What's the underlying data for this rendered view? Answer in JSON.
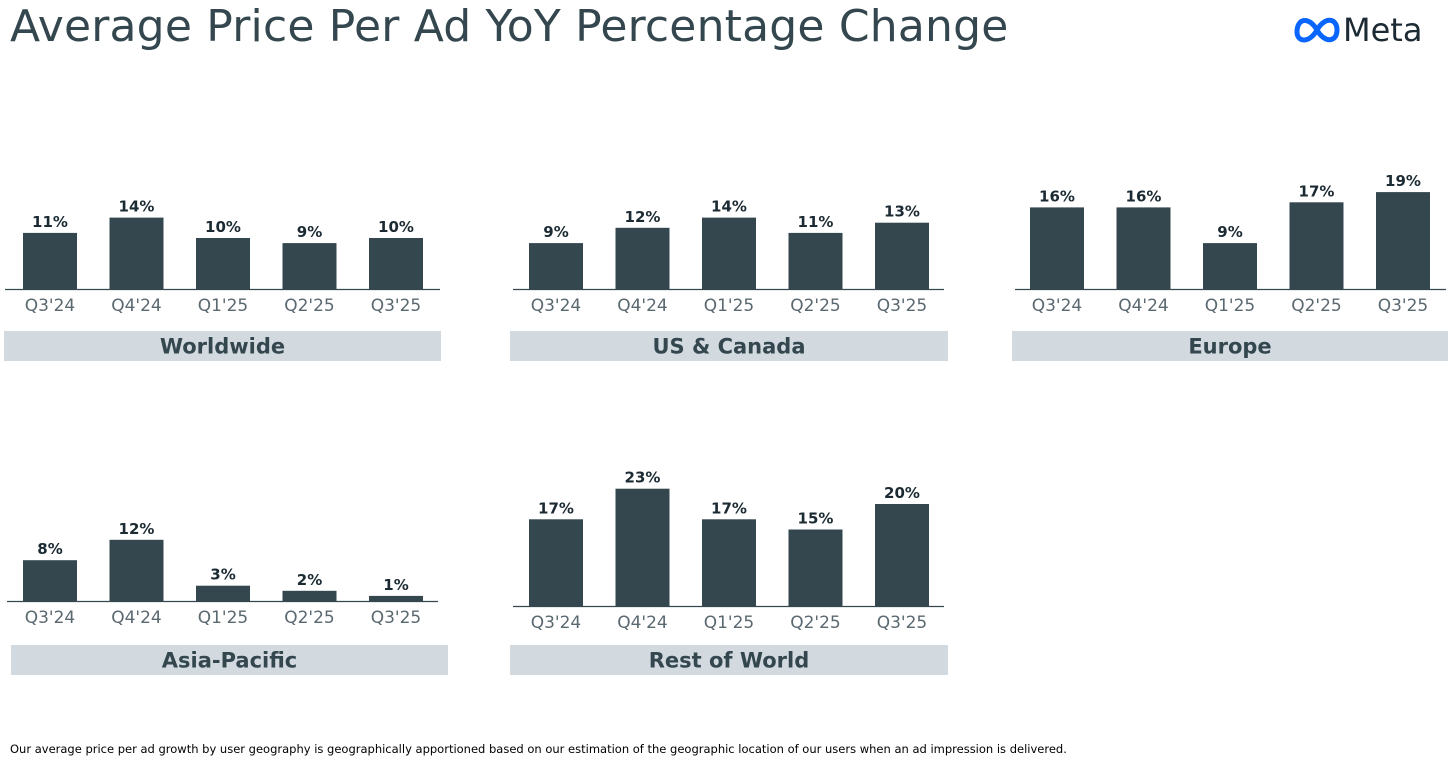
{
  "title": "Average Price Per Ad YoY Percentage Change",
  "logo": {
    "icon": "meta-infinity-icon",
    "text": "Meta",
    "brand_color": "#0866ff"
  },
  "footnote": "Our average price per ad growth by user geography is geographically apportioned based on our estimation of the geographic location of our users when an ad impression is delivered.",
  "colors": {
    "bar": "#34474f",
    "label_band": "#d2dae0",
    "axis": "#34474f"
  },
  "chart_data": [
    {
      "type": "bar",
      "title": "Worldwide",
      "categories": [
        "Q3'24",
        "Q4'24",
        "Q1'25",
        "Q2'25",
        "Q3'25"
      ],
      "values": [
        11,
        14,
        10,
        9,
        10
      ],
      "value_labels": [
        "11%",
        "14%",
        "10%",
        "9%",
        "10%"
      ],
      "unit": "%"
    },
    {
      "type": "bar",
      "title": "US & Canada",
      "categories": [
        "Q3'24",
        "Q4'24",
        "Q1'25",
        "Q2'25",
        "Q3'25"
      ],
      "values": [
        9,
        12,
        14,
        11,
        13
      ],
      "value_labels": [
        "9%",
        "12%",
        "14%",
        "11%",
        "13%"
      ],
      "unit": "%"
    },
    {
      "type": "bar",
      "title": "Europe",
      "categories": [
        "Q3'24",
        "Q4'24",
        "Q1'25",
        "Q2'25",
        "Q3'25"
      ],
      "values": [
        16,
        16,
        9,
        17,
        19
      ],
      "value_labels": [
        "16%",
        "16%",
        "9%",
        "17%",
        "19%"
      ],
      "unit": "%"
    },
    {
      "type": "bar",
      "title": "Asia-Pacific",
      "categories": [
        "Q3'24",
        "Q4'24",
        "Q1'25",
        "Q2'25",
        "Q3'25"
      ],
      "values": [
        8,
        12,
        3,
        2,
        1
      ],
      "value_labels": [
        "8%",
        "12%",
        "3%",
        "2%",
        "1%"
      ],
      "unit": "%"
    },
    {
      "type": "bar",
      "title": "Rest of World",
      "categories": [
        "Q3'24",
        "Q4'24",
        "Q1'25",
        "Q2'25",
        "Q3'25"
      ],
      "values": [
        17,
        23,
        17,
        15,
        20
      ],
      "value_labels": [
        "17%",
        "23%",
        "17%",
        "15%",
        "20%"
      ],
      "unit": "%"
    }
  ]
}
